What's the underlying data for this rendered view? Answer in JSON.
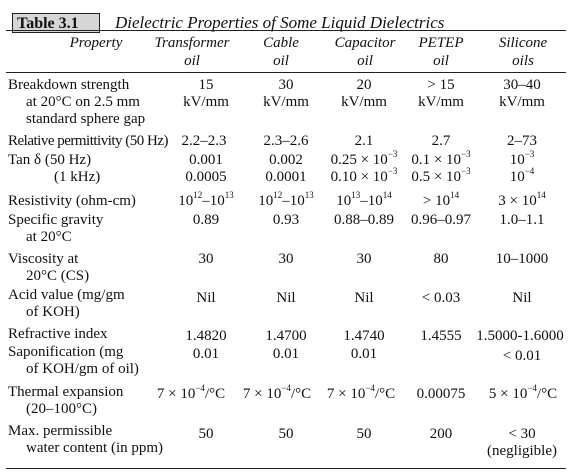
{
  "table": {
    "label": "Table 3.1",
    "title": "Dielectric Properties of Some Liquid Dielectrics",
    "headers": {
      "property": "Property",
      "transformer": [
        "Transformer",
        "oil"
      ],
      "cable": [
        "Cable",
        "oil"
      ],
      "capacitor": [
        "Capacitor",
        "oil"
      ],
      "petep": [
        "PETEP",
        "oil"
      ],
      "silicone": [
        "Silicone",
        "oils"
      ]
    },
    "rows": {
      "breakdown": {
        "property": [
          "Breakdown strength",
          "at 20°C on 2.5 mm",
          "standard sphere gap"
        ],
        "transformer": [
          "15",
          "kV/mm"
        ],
        "cable": [
          "30",
          "kV/mm"
        ],
        "capacitor": [
          "20",
          "kV/mm"
        ],
        "petep": [
          "> 15",
          "kV/mm"
        ],
        "silicone": [
          "30–40",
          "kV/mm"
        ]
      },
      "permittivity": {
        "property": "Relative permittivity (50 Hz)",
        "transformer": "2.2–2.3",
        "cable": "2.3–2.6",
        "capacitor": "2.1",
        "petep": "2.7",
        "silicone": "2–73"
      },
      "tan_delta": {
        "property": [
          "Tan δ (50 Hz)",
          "(1 kHz)"
        ],
        "transformer": [
          "0.001",
          "0.0005"
        ],
        "cable": [
          "0.002",
          "0.0001"
        ],
        "capacitor": [
          "0.25 × 10",
          "0.10 × 10"
        ],
        "capacitor_exp": [
          "−3",
          "−3"
        ],
        "petep": [
          "0.1 × 10",
          "0.5 × 10"
        ],
        "petep_exp": [
          "−3",
          "−3"
        ],
        "silicone": [
          "10",
          "10"
        ],
        "silicone_exp": [
          "−3",
          "−4"
        ]
      },
      "resistivity": {
        "property": "Resistivity (ohm-cm)",
        "transformer": [
          "10",
          "12",
          "–10",
          "13"
        ],
        "cable": [
          "10",
          "12",
          "–10",
          "13"
        ],
        "capacitor": [
          "10",
          "13",
          "–10",
          "14"
        ],
        "petep": [
          "> 10",
          "14"
        ],
        "silicone": [
          "3 × 10",
          "14"
        ]
      },
      "gravity": {
        "property": [
          "Specific gravity",
          "at 20°C"
        ],
        "transformer": "0.89",
        "cable": "0.93",
        "capacitor": "0.88–0.89",
        "petep": "0.96–0.97",
        "silicone": "1.0–1.1"
      },
      "viscosity": {
        "property": [
          "Viscosity at",
          "20°C (CS)"
        ],
        "transformer": "30",
        "cable": "30",
        "capacitor": "30",
        "petep": "80",
        "silicone": "10–1000"
      },
      "acid": {
        "property": [
          "Acid value (mg/gm",
          "of KOH)"
        ],
        "transformer": "Nil",
        "cable": "Nil",
        "capacitor": "Nil",
        "petep": "< 0.03",
        "silicone": "Nil"
      },
      "refractive": {
        "property": "Refractive index",
        "transformer": "1.4820",
        "cable": "1.4700",
        "capacitor": "1.4740",
        "petep": "1.4555",
        "silicone": "1.5000-1.6000"
      },
      "saponification": {
        "property": [
          "Saponification (mg",
          "of KOH/gm of oil)"
        ],
        "transformer": "0.01",
        "cable": "0.01",
        "capacitor": "0.01",
        "petep": "",
        "silicone": "< 0.01"
      },
      "thermal": {
        "property": [
          "Thermal expansion",
          "(20–100°C)"
        ],
        "transformer": [
          "7 × 10",
          "−4",
          "/°C"
        ],
        "cable": [
          "7 × 10",
          "−4",
          "/°C"
        ],
        "capacitor": [
          "7 × 10",
          "−4",
          "/°C"
        ],
        "petep": "0.00075",
        "silicone": [
          "5 × 10",
          "−4",
          "/°C"
        ]
      },
      "water": {
        "property": [
          "Max. permissible",
          "water content (in ppm)"
        ],
        "transformer": "50",
        "cable": "50",
        "capacitor": "50",
        "petep": "200",
        "silicone": [
          "< 30",
          "(negligible)"
        ]
      }
    }
  }
}
